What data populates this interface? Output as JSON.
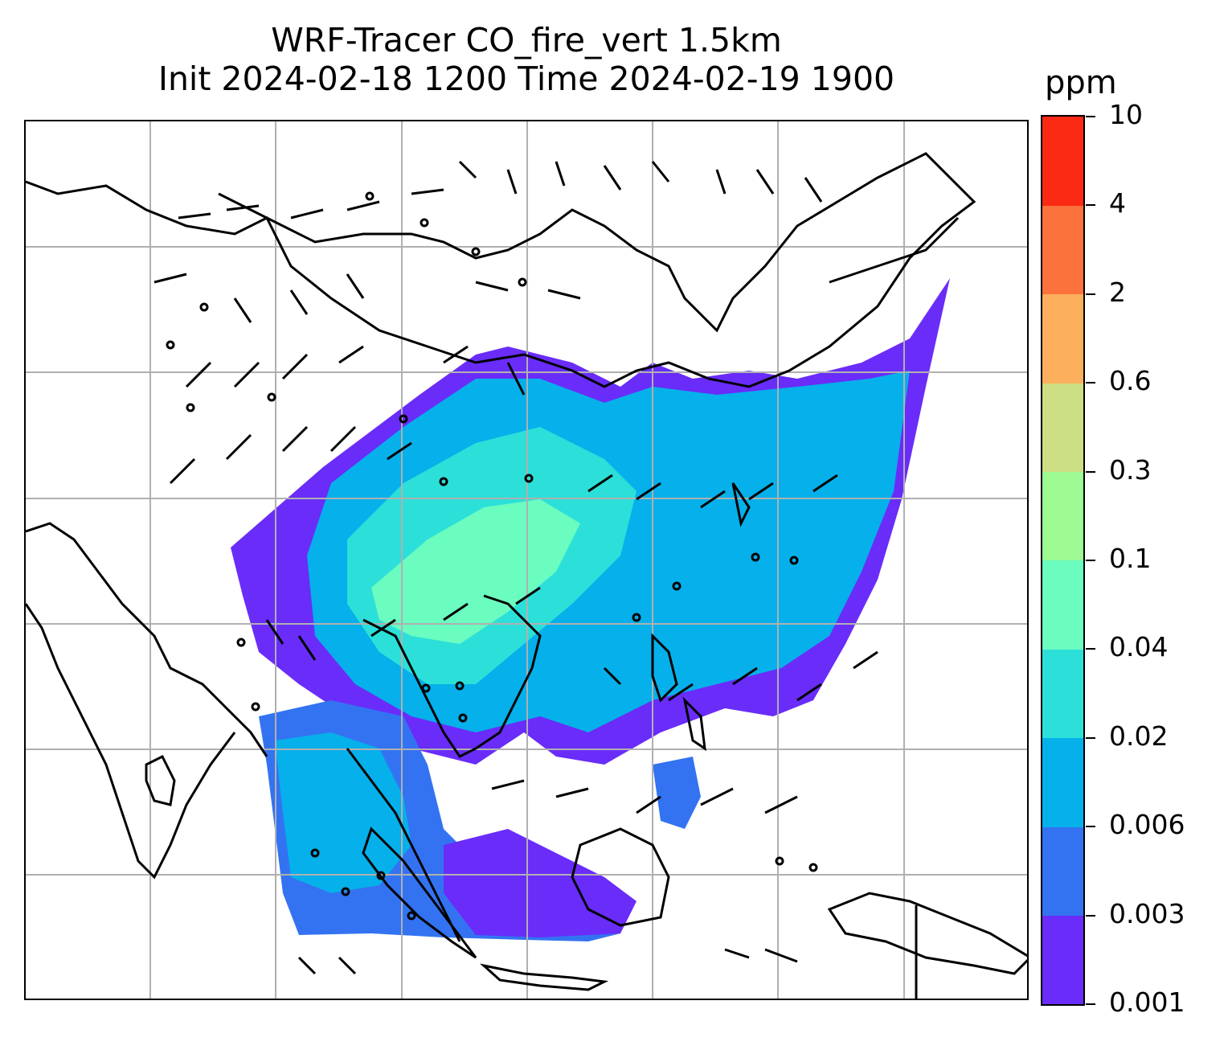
{
  "title": {
    "line1": "WRF-Tracer CO_fire_vert 1.5km",
    "line2": "Init 2024-02-18 1200 Time 2024-02-19 1900"
  },
  "colorbar": {
    "unit": "ppm",
    "levels": [
      "0.001",
      "0.003",
      "0.006",
      "0.02",
      "0.04",
      "0.1",
      "0.3",
      "0.6",
      "2",
      "4",
      "10"
    ],
    "colors": [
      "#6a2cf9",
      "#3373f2",
      "#06b0ea",
      "#2ce0d9",
      "#6bfcc0",
      "#9efa93",
      "#cddf83",
      "#fcb05d",
      "#fc723c",
      "#fb2a14"
    ]
  },
  "map": {
    "gridlines": true,
    "coastline_color": "#000000",
    "gridline_color": "#b0b0b0"
  }
}
